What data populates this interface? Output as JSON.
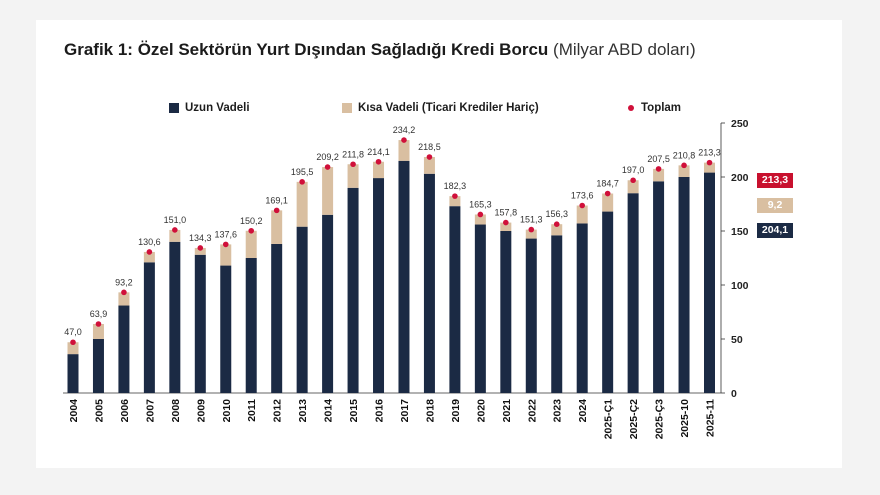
{
  "title": {
    "main": "Grafik 1: Özel Sektörün Yurt Dışından Sağladığı Kredi Borcu",
    "unit": "(Milyar ABD doları)"
  },
  "legend": [
    {
      "name": "Uzun Vadeli",
      "color": "#1b2a44",
      "kind": "bar"
    },
    {
      "name": "Kısa Vadeli (Ticari Krediler Hariç)",
      "color": "#d9bfa1",
      "kind": "bar"
    },
    {
      "name": "Toplam",
      "color": "#d0103a",
      "kind": "dot"
    }
  ],
  "chart_data": {
    "type": "bar",
    "stacked": true,
    "categories": [
      "2004",
      "2005",
      "2006",
      "2007",
      "2008",
      "2009",
      "2010",
      "2011",
      "2012",
      "2013",
      "2014",
      "2015",
      "2016",
      "2017",
      "2018",
      "2019",
      "2020",
      "2021",
      "2022",
      "2023",
      "2024",
      "2025-Ç1",
      "2025-Ç2",
      "2025-Ç3",
      "2025-10",
      "2025-11"
    ],
    "series": [
      {
        "name": "Uzun Vadeli",
        "color": "#1b2a44",
        "values": [
          36,
          50,
          81,
          121,
          140,
          128,
          118,
          125,
          138,
          154,
          165,
          190,
          199,
          215,
          203,
          173,
          156,
          150,
          143,
          146,
          157,
          168,
          185,
          196,
          200,
          204.1
        ]
      },
      {
        "name": "Kısa Vadeli (Ticari Krediler Hariç)",
        "color": "#d9bfa1",
        "values": [
          11,
          13.9,
          12.2,
          9.6,
          11,
          6.3,
          19.6,
          25.2,
          31.1,
          41.5,
          44.2,
          21.8,
          15.1,
          19.2,
          15.5,
          9.3,
          9.3,
          7.8,
          8.3,
          10.3,
          16.6,
          16.7,
          12,
          11.5,
          10.8,
          9.2
        ]
      }
    ],
    "totals_series": {
      "name": "Toplam",
      "color": "#d0103a"
    },
    "totals": [
      "47,0",
      "63,9",
      "93,2",
      "130,6",
      "151,0",
      "134,3",
      "137,6",
      "150,2",
      "169,1",
      "195,5",
      "209,2",
      "211,8",
      "214,1",
      "234,2",
      "218,5",
      "182,3",
      "165,3",
      "157,8",
      "151,3",
      "156,3",
      "173,6",
      "184,7",
      "197,0",
      "207,5",
      "210,8",
      "213,3"
    ],
    "ylim": [
      0,
      250
    ],
    "yticks": [
      "0",
      "50",
      "100",
      "150",
      "200",
      "250"
    ],
    "y_axis_position": "right",
    "last_point_labels": [
      {
        "series": "Toplam",
        "text": "213,3",
        "color": "#c8102e"
      },
      {
        "series": "Kısa Vadeli (Ticari Krediler Hariç)",
        "text": "9,2",
        "color": "#d9bfa1"
      },
      {
        "series": "Uzun Vadeli",
        "text": "204,1",
        "color": "#1b2a44"
      }
    ]
  }
}
